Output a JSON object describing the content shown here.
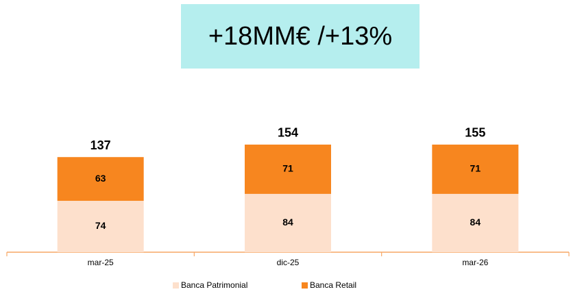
{
  "chart_data": {
    "type": "stacked_bar",
    "annotation": "+18MM€ /+13%",
    "categories": [
      "mar-25",
      "dic-25",
      "mar-26"
    ],
    "series": [
      {
        "name": "Banca Patrimonial",
        "color": "#fde0cc",
        "values": [
          74,
          84,
          84
        ]
      },
      {
        "name": "Banca Retail",
        "color": "#f7861f",
        "values": [
          63,
          71,
          71
        ]
      }
    ],
    "totals": [
      137,
      154,
      155
    ]
  }
}
